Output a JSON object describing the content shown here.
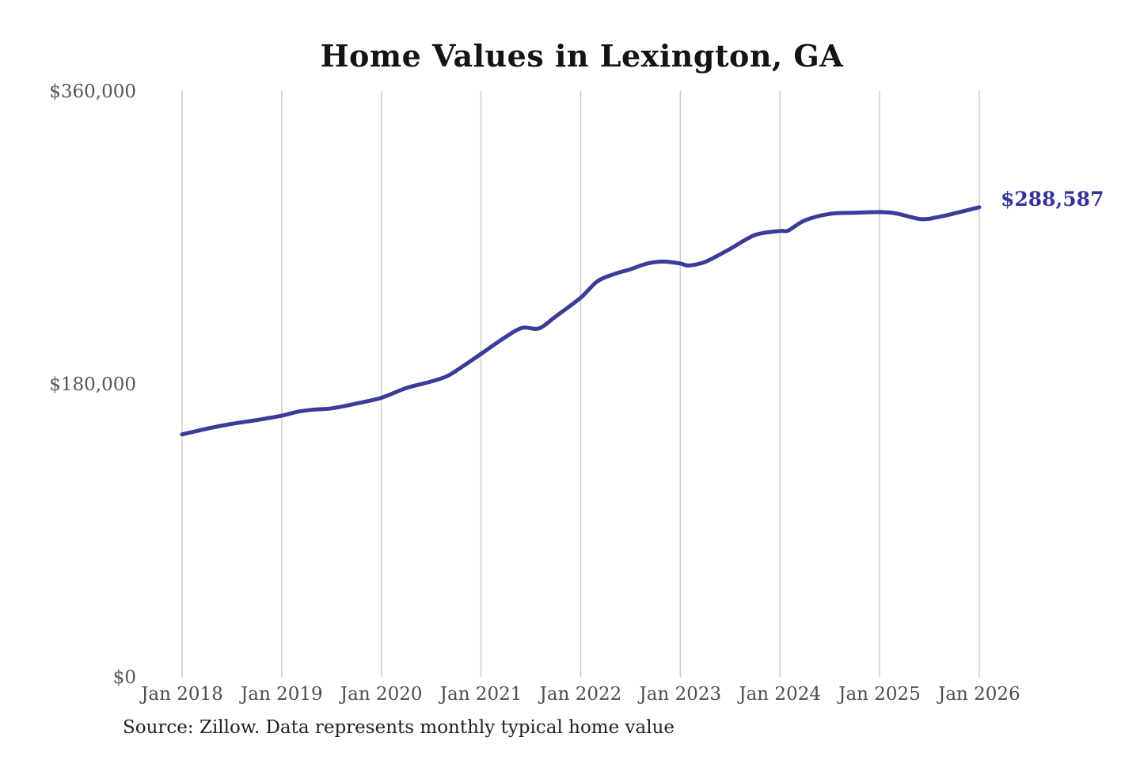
{
  "title": "Home Values in Lexington, GA",
  "source_note": "Source: Zillow. Data represents monthly typical home value",
  "end_label": "$288,587",
  "colors": {
    "line": "#3b3b98",
    "end_label": "#33339b",
    "grid": "#cbcbcb",
    "tick_text": "#4d4d4d",
    "title_text": "#141414",
    "source_text": "#222222",
    "background": "#ffffff"
  },
  "chart_data": {
    "type": "line",
    "title": "Home Values in Lexington, GA",
    "xlabel": "",
    "ylabel": "",
    "legend": "none",
    "grid": "vertical-only",
    "ylim": [
      0,
      360000
    ],
    "y_ticks": [
      {
        "label": "$0",
        "value": 0
      },
      {
        "label": "$180,000",
        "value": 180000
      },
      {
        "label": "$360,000",
        "value": 360000
      }
    ],
    "x_tick_labels": [
      "Jan 2018",
      "Jan 2019",
      "Jan 2020",
      "Jan 2021",
      "Jan 2022",
      "Jan 2023",
      "Jan 2024",
      "Jan 2025",
      "Jan 2026"
    ],
    "series": [
      {
        "name": "Monthly typical home value",
        "points": [
          {
            "date": "2018-01",
            "value": 149000
          },
          {
            "date": "2018-04",
            "value": 152500
          },
          {
            "date": "2018-07",
            "value": 155500
          },
          {
            "date": "2018-10",
            "value": 157800
          },
          {
            "date": "2019-01",
            "value": 160500
          },
          {
            "date": "2019-03",
            "value": 163000
          },
          {
            "date": "2019-05",
            "value": 164300
          },
          {
            "date": "2019-07",
            "value": 165000
          },
          {
            "date": "2019-10",
            "value": 168000
          },
          {
            "date": "2020-01",
            "value": 171500
          },
          {
            "date": "2020-04",
            "value": 177500
          },
          {
            "date": "2020-07",
            "value": 181500
          },
          {
            "date": "2020-09",
            "value": 185000
          },
          {
            "date": "2020-11",
            "value": 191500
          },
          {
            "date": "2021-01",
            "value": 198500
          },
          {
            "date": "2021-04",
            "value": 209000
          },
          {
            "date": "2021-06",
            "value": 214500
          },
          {
            "date": "2021-08",
            "value": 214200
          },
          {
            "date": "2021-10",
            "value": 221500
          },
          {
            "date": "2022-01",
            "value": 233000
          },
          {
            "date": "2022-03",
            "value": 243000
          },
          {
            "date": "2022-05",
            "value": 247500
          },
          {
            "date": "2022-07",
            "value": 250500
          },
          {
            "date": "2022-09",
            "value": 254000
          },
          {
            "date": "2022-11",
            "value": 255200
          },
          {
            "date": "2023-01",
            "value": 254000
          },
          {
            "date": "2023-02",
            "value": 252800
          },
          {
            "date": "2023-04",
            "value": 255000
          },
          {
            "date": "2023-07",
            "value": 263000
          },
          {
            "date": "2023-10",
            "value": 271500
          },
          {
            "date": "2024-01",
            "value": 274000
          },
          {
            "date": "2024-02",
            "value": 274300
          },
          {
            "date": "2024-04",
            "value": 280500
          },
          {
            "date": "2024-07",
            "value": 284500
          },
          {
            "date": "2024-10",
            "value": 285200
          },
          {
            "date": "2025-01",
            "value": 285600
          },
          {
            "date": "2025-03",
            "value": 284800
          },
          {
            "date": "2025-06",
            "value": 281300
          },
          {
            "date": "2025-08",
            "value": 282500
          },
          {
            "date": "2025-10",
            "value": 284800
          },
          {
            "date": "2026-01",
            "value": 288587
          }
        ],
        "final_value": 288587,
        "final_value_label": "$288,587"
      }
    ]
  }
}
